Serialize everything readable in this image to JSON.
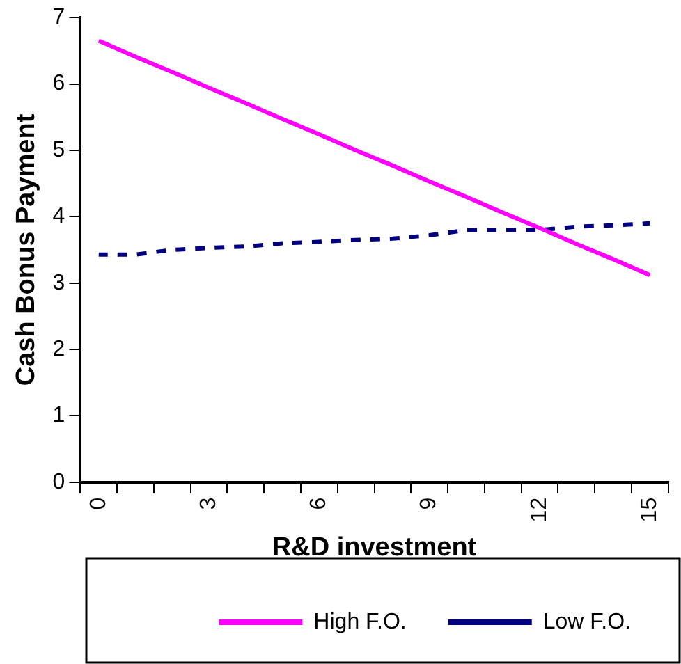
{
  "chart_data": {
    "type": "line",
    "xlabel": "R&D investment",
    "ylabel": "Cash Bonus Payment",
    "categories": [
      "0",
      null,
      null,
      "3",
      null,
      null,
      "6",
      null,
      null,
      "9",
      null,
      null,
      "12",
      null,
      null,
      "15"
    ],
    "series": [
      {
        "name": "High F.O.",
        "color": "#ff00ff",
        "line_style": "solid",
        "values": [
          6.65,
          6.41,
          6.18,
          5.94,
          5.71,
          5.47,
          5.24,
          5.0,
          4.77,
          4.53,
          4.3,
          4.06,
          3.83,
          3.59,
          3.36,
          3.12
        ]
      },
      {
        "name": "Low F.O.",
        "color": "#000080",
        "line_style": "dashed",
        "values": [
          3.43,
          3.43,
          3.5,
          3.53,
          3.55,
          3.6,
          3.62,
          3.65,
          3.67,
          3.72,
          3.8,
          3.8,
          3.8,
          3.85,
          3.87,
          3.9
        ]
      }
    ],
    "ylim": [
      0,
      7
    ],
    "yticks": [
      0,
      1,
      2,
      3,
      4,
      5,
      6,
      7
    ],
    "grid": false,
    "legend": "bottom",
    "marker": "none"
  }
}
